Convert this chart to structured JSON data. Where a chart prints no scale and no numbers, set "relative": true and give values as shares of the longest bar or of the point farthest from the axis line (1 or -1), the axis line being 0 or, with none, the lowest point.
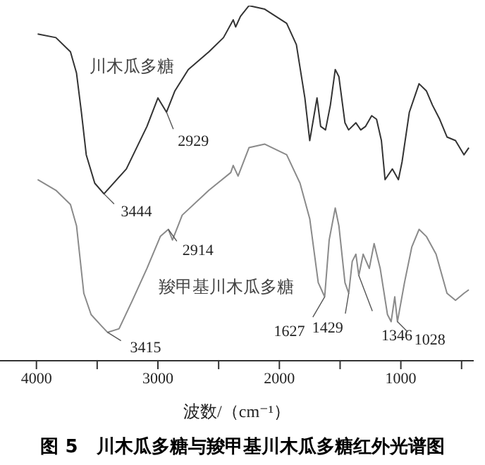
{
  "chart_data": {
    "type": "line",
    "relative": true,
    "title": "图 5　川木瓜多糖与羧甲基川木瓜多糖红外光谱图",
    "xlabel": "波数/（cm⁻¹）",
    "xlim": [
      4300,
      400
    ],
    "xticks": [
      {
        "value": 4000,
        "label": "4000"
      },
      {
        "value": 3500,
        "label": null
      },
      {
        "value": 3000,
        "label": "3000"
      },
      {
        "value": 2500,
        "label": null
      },
      {
        "value": 2000,
        "label": "2000"
      },
      {
        "value": 1500,
        "label": null
      },
      {
        "value": 1000,
        "label": "1000"
      },
      {
        "value": 500,
        "label": null
      }
    ],
    "tick_labels": "x",
    "marker": "none",
    "line_style": "solid",
    "series": [
      {
        "name": "川木瓜多糖",
        "color": "#333333",
        "x": [
          3990,
          3840,
          3720,
          3670,
          3630,
          3590,
          3520,
          3444,
          3260,
          3090,
          3000,
          2929,
          2860,
          2750,
          2580,
          2460,
          2380,
          2360,
          2320,
          2250,
          2120,
          1940,
          1860,
          1790,
          1750,
          1720,
          1690,
          1660,
          1620,
          1580,
          1540,
          1510,
          1460,
          1430,
          1370,
          1330,
          1290,
          1240,
          1200,
          1160,
          1130,
          1070,
          1020,
          990,
          930,
          850,
          790,
          740,
          680,
          620,
          550,
          480,
          440
        ],
        "values": [
          0.92,
          0.91,
          0.87,
          0.81,
          0.7,
          0.58,
          0.5,
          0.47,
          0.54,
          0.66,
          0.74,
          0.7,
          0.76,
          0.82,
          0.87,
          0.91,
          0.96,
          0.94,
          0.97,
          1.0,
          0.99,
          0.95,
          0.89,
          0.74,
          0.62,
          0.68,
          0.74,
          0.66,
          0.65,
          0.72,
          0.82,
          0.8,
          0.67,
          0.65,
          0.67,
          0.65,
          0.66,
          0.69,
          0.68,
          0.62,
          0.51,
          0.54,
          0.51,
          0.56,
          0.7,
          0.78,
          0.76,
          0.72,
          0.68,
          0.63,
          0.62,
          0.58,
          0.6
        ]
      },
      {
        "name": "羧甲基川木瓜多糖",
        "color": "#8a8a8a",
        "x": [
          3990,
          3840,
          3720,
          3670,
          3610,
          3550,
          3470,
          3415,
          3320,
          3210,
          3090,
          2980,
          2914,
          2880,
          2800,
          2580,
          2400,
          2380,
          2340,
          2250,
          2120,
          1940,
          1830,
          1750,
          1680,
          1627,
          1590,
          1540,
          1510,
          1460,
          1429,
          1400,
          1370,
          1346,
          1310,
          1260,
          1220,
          1170,
          1110,
          1080,
          1050,
          1028,
          970,
          910,
          850,
          790,
          710,
          620,
          550,
          480,
          440
        ],
        "values": [
          0.51,
          0.48,
          0.44,
          0.38,
          0.19,
          0.13,
          0.1,
          0.08,
          0.09,
          0.17,
          0.26,
          0.35,
          0.37,
          0.34,
          0.41,
          0.48,
          0.53,
          0.55,
          0.52,
          0.6,
          0.61,
          0.58,
          0.5,
          0.4,
          0.22,
          0.18,
          0.34,
          0.43,
          0.38,
          0.22,
          0.19,
          0.28,
          0.3,
          0.24,
          0.3,
          0.26,
          0.33,
          0.26,
          0.13,
          0.11,
          0.18,
          0.11,
          0.22,
          0.32,
          0.37,
          0.35,
          0.3,
          0.19,
          0.17,
          0.19,
          0.2
        ]
      }
    ],
    "annotations": [
      {
        "text": "3444",
        "x": 3444,
        "y": 0.47
      },
      {
        "text": "2929",
        "x": 2929,
        "y": 0.7
      },
      {
        "text": "3415",
        "x": 3415,
        "y": 0.08
      },
      {
        "text": "2914",
        "x": 2914,
        "y": 0.37
      },
      {
        "text": "1627",
        "x": 1627,
        "y": 0.18
      },
      {
        "text": "1429",
        "x": 1429,
        "y": 0.19
      },
      {
        "text": "1346",
        "x": 1346,
        "y": 0.24
      },
      {
        "text": "1028",
        "x": 1028,
        "y": 0.11
      }
    ]
  }
}
